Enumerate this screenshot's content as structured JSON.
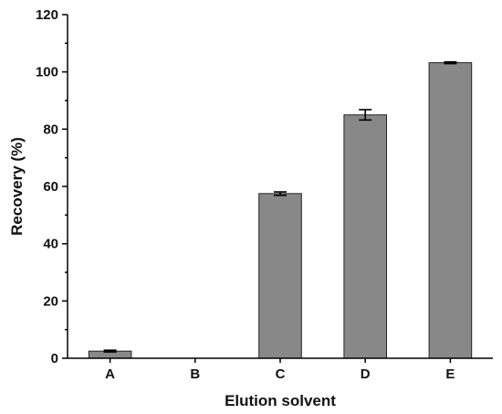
{
  "chart_data": {
    "type": "bar",
    "categories": [
      "A",
      "B",
      "C",
      "D",
      "E"
    ],
    "values": [
      2.5,
      0,
      57.5,
      85.0,
      103.2
    ],
    "errors": [
      0.3,
      0,
      0.6,
      1.8,
      0.3
    ],
    "xlabel": "Elution solvent",
    "ylabel": "Recovery (%)",
    "ylim": [
      0,
      120
    ],
    "yticks": [
      0,
      20,
      40,
      60,
      80,
      100,
      120
    ],
    "grid": false,
    "bar_color": "#888888"
  }
}
